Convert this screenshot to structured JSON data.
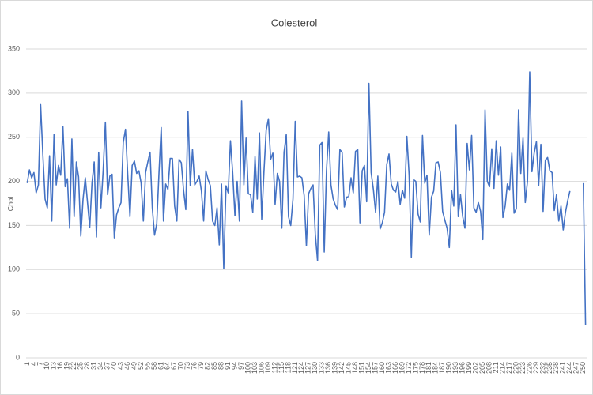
{
  "chart_data": {
    "type": "line",
    "title": "Colesterol",
    "y_label": "Chol",
    "categories": [
      1,
      null,
      null,
      4,
      null,
      null,
      7,
      null,
      null,
      10,
      null,
      null,
      13,
      null,
      null,
      16,
      null,
      null,
      19,
      null,
      null,
      22,
      null,
      null,
      25,
      null,
      null,
      28,
      null,
      null,
      31,
      null,
      null,
      34,
      null,
      null,
      37,
      null,
      null,
      40,
      null,
      null,
      43,
      null,
      null,
      46,
      null,
      null,
      49,
      null,
      null,
      52,
      null,
      null,
      55,
      null,
      null,
      58,
      null,
      null,
      61,
      null,
      null,
      64,
      null,
      null,
      67,
      null,
      null,
      70,
      null,
      null,
      73,
      null,
      null,
      76,
      null,
      null,
      79,
      null,
      null,
      82,
      null,
      null,
      85,
      null,
      null,
      88,
      null,
      null,
      91,
      null,
      null,
      94,
      null,
      null,
      97,
      null,
      null,
      100,
      null,
      null,
      103,
      null,
      null,
      106,
      null,
      null,
      109,
      null,
      null,
      112,
      null,
      null,
      115,
      null,
      null,
      118,
      null,
      null,
      121,
      null,
      null,
      124,
      null,
      null,
      127,
      null,
      null,
      130,
      null,
      null,
      133,
      null,
      null,
      136,
      null,
      null,
      139,
      null,
      null,
      142,
      null,
      null,
      145,
      null,
      null,
      148,
      null,
      null,
      151,
      null,
      null,
      154,
      null,
      null,
      157,
      null,
      null,
      160,
      null,
      null,
      163,
      null,
      null,
      166,
      null,
      null,
      169,
      null,
      null,
      172,
      null,
      null,
      175,
      null,
      null,
      178,
      null,
      null,
      181,
      null,
      null,
      184,
      null,
      null,
      187,
      null,
      null,
      190,
      null,
      null,
      193,
      null,
      null,
      196,
      null,
      null,
      199,
      null,
      null,
      202,
      null,
      null,
      205,
      null,
      null,
      208,
      null,
      null,
      211,
      null,
      null,
      214,
      null,
      null,
      217,
      null,
      null,
      220,
      null,
      null,
      223,
      null,
      null,
      226,
      null,
      null,
      229,
      null,
      null,
      232,
      null,
      null,
      235,
      null,
      null,
      238,
      null,
      null,
      241,
      null,
      null,
      244,
      null,
      null,
      247,
      null,
      null,
      250,
      null
    ],
    "values": [
      198,
      213,
      204,
      210,
      187,
      196,
      287,
      230,
      180,
      170,
      229,
      155,
      253,
      196,
      218,
      207,
      262,
      194,
      203,
      147,
      248,
      160,
      222,
      205,
      138,
      180,
      204,
      176,
      148,
      198,
      222,
      137,
      233,
      170,
      212,
      267,
      185,
      206,
      208,
      136,
      162,
      170,
      176,
      244,
      259,
      208,
      160,
      218,
      223,
      209,
      212,
      198,
      155,
      210,
      222,
      233,
      170,
      139,
      152,
      210,
      261,
      155,
      197,
      191,
      226,
      226,
      172,
      155,
      225,
      221,
      190,
      168,
      279,
      195,
      236,
      196,
      200,
      206,
      189,
      155,
      212,
      202,
      195,
      155,
      150,
      170,
      128,
      197,
      101,
      195,
      187,
      246,
      210,
      161,
      200,
      155,
      291,
      196,
      249,
      186,
      185,
      165,
      228,
      180,
      255,
      157,
      211,
      258,
      271,
      225,
      232,
      174,
      209,
      200,
      147,
      233,
      253,
      160,
      150,
      180,
      268,
      205,
      206,
      204,
      184,
      127,
      186,
      192,
      196,
      140,
      110,
      241,
      244,
      120,
      212,
      256,
      196,
      180,
      173,
      168,
      236,
      233,
      171,
      182,
      183,
      204,
      187,
      234,
      236,
      153,
      212,
      218,
      177,
      311,
      210,
      191,
      165,
      206,
      146,
      153,
      165,
      219,
      231,
      197,
      190,
      188,
      200,
      174,
      190,
      181,
      251,
      207,
      114,
      202,
      200,
      163,
      154,
      252,
      198,
      207,
      139,
      182,
      189,
      221,
      222,
      210,
      166,
      156,
      147,
      125,
      190,
      172,
      264,
      160,
      185,
      160,
      147,
      243,
      213,
      252,
      170,
      165,
      176,
      166,
      134,
      281,
      200,
      194,
      237,
      192,
      246,
      207,
      239,
      159,
      172,
      197,
      190,
      232,
      164,
      169,
      281,
      209,
      249,
      176,
      200,
      324,
      211,
      232,
      245,
      195,
      242,
      166,
      224,
      227,
      212,
      210,
      167,
      185,
      155,
      172,
      145,
      165,
      178,
      189,
      null,
      null,
      null,
      null,
      null,
      198,
      37
    ],
    "color": "#4472c4",
    "ylim": [
      0,
      350
    ],
    "yticks": [
      0,
      50,
      100,
      150,
      200,
      250,
      300,
      350
    ],
    "grid": true
  }
}
